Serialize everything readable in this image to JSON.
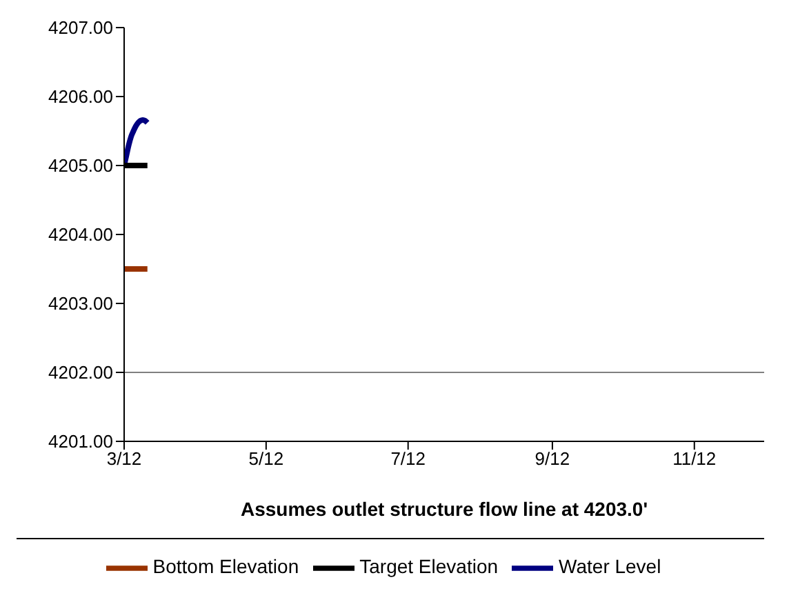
{
  "chart_data": {
    "type": "line",
    "xlabel": "Assumes outlet structure flow line at 4203.0'",
    "series": [
      {
        "name": "Water Level",
        "color": "#000080",
        "x": [
          "2012-03-01",
          "2012-03-02",
          "2012-03-03",
          "2012-03-04",
          "2012-03-05",
          "2012-03-06",
          "2012-03-07",
          "2012-03-08",
          "2012-03-09",
          "2012-03-10",
          "2012-03-11"
        ],
        "values": [
          4205.0,
          4205.15,
          4205.3,
          4205.42,
          4205.5,
          4205.57,
          4205.62,
          4205.65,
          4205.66,
          4205.65,
          4205.62
        ]
      },
      {
        "name": "Target Elevation",
        "color": "#000000",
        "x": [
          "2012-03-01",
          "2012-03-11"
        ],
        "values": [
          4205.0,
          4205.0
        ]
      },
      {
        "name": "Bottom Elevation",
        "color": "#993300",
        "x": [
          "2012-03-01",
          "2012-03-11"
        ],
        "values": [
          4203.5,
          4203.5
        ]
      }
    ],
    "xlim": [
      "2012-03-01",
      "2012-12-01"
    ],
    "xticks": [
      {
        "value": "2012-03-01",
        "label": "3/12"
      },
      {
        "value": "2012-05-01",
        "label": "5/12"
      },
      {
        "value": "2012-07-01",
        "label": "7/12"
      },
      {
        "value": "2012-09-01",
        "label": "9/12"
      },
      {
        "value": "2012-11-01",
        "label": "11/12"
      }
    ],
    "ylim": [
      4201,
      4207
    ],
    "yticks": [
      {
        "value": 4201,
        "label": "4201.00"
      },
      {
        "value": 4202,
        "label": "4202.00"
      },
      {
        "value": 4203,
        "label": "4203.00"
      },
      {
        "value": 4204,
        "label": "4204.00"
      },
      {
        "value": 4205,
        "label": "4205.00"
      },
      {
        "value": 4206,
        "label": "4206.00"
      },
      {
        "value": 4207,
        "label": "4207.00"
      }
    ],
    "ref_lines": [
      {
        "axis": "y",
        "value": 4202,
        "color": "#808080"
      }
    ],
    "legend": "bottom",
    "marker": "none",
    "line_style": "solid"
  }
}
